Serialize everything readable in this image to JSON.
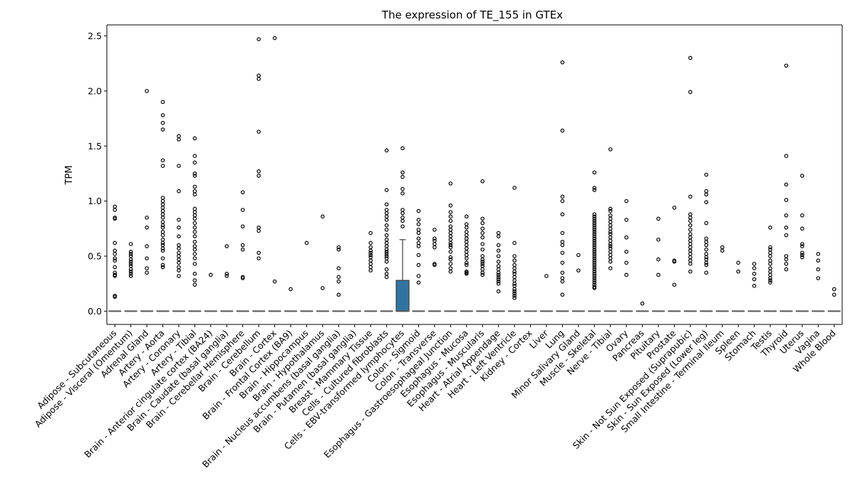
{
  "chart_data": {
    "type": "box",
    "title": "The expression of TE_155 in GTEx",
    "xlabel": "",
    "ylabel": "TPM",
    "ylim": [
      -0.12,
      2.6
    ],
    "yticks": [
      "0.0",
      "0.5",
      "1.0",
      "1.5",
      "2.0",
      "2.5"
    ],
    "box_color": "#3274a1",
    "categories": [
      "Adipose - Subcutaneous",
      "Adipose - Visceral (Omentum)",
      "Adrenal Gland",
      "Artery - Aorta",
      "Artery - Coronary",
      "Artery - Tibial",
      "Brain - Anterior cingulate cortex (BA24)",
      "Brain - Caudate (basal ganglia)",
      "Brain - Cerebellar Hemisphere",
      "Brain - Cerebellum",
      "Brain - Cortex",
      "Brain - Frontal Cortex (BA9)",
      "Brain - Hippocampus",
      "Brain - Hypothalamus",
      "Brain - Nucleus accumbens (basal ganglia)",
      "Brain - Putamen (basal ganglia)",
      "Breast - Mammary Tissue",
      "Cells - Cultured fibroblasts",
      "Cells - EBV-transformed lymphocytes",
      "Colon - Sigmoid",
      "Colon - Transverse",
      "Esophagus - Gastroesophageal Junction",
      "Esophagus - Mucosa",
      "Esophagus - Muscularis",
      "Heart - Atrial Appendage",
      "Heart - Left Ventricle",
      "Kidney - Cortex",
      "Liver",
      "Lung",
      "Minor Salivary Gland",
      "Muscle - Skeletal",
      "Nerve - Tibial",
      "Ovary",
      "Pancreas",
      "Pituitary",
      "Prostate",
      "Skin - Not Sun Exposed (Suprapubic)",
      "Skin - Sun Exposed (Lower leg)",
      "Small Intestine - Terminal Ileum",
      "Spleen",
      "Stomach",
      "Testis",
      "Thyroid",
      "Uterus",
      "Vagina",
      "Whole Blood"
    ],
    "boxes": [
      {
        "median": 0,
        "q1": 0,
        "q3": 0,
        "whislo": 0,
        "whishi": 0,
        "fliers": [
          0.95,
          0.92,
          0.85,
          0.84,
          0.62,
          0.55,
          0.52,
          0.48,
          0.46,
          0.4,
          0.35,
          0.33,
          0.32,
          0.14,
          0.13
        ]
      },
      {
        "median": 0,
        "q1": 0,
        "q3": 0,
        "whislo": 0,
        "whishi": 0,
        "fliers": [
          0.61,
          0.54,
          0.52,
          0.5,
          0.47,
          0.45,
          0.43,
          0.41,
          0.38,
          0.36,
          0.34,
          0.32
        ]
      },
      {
        "median": 0,
        "q1": 0,
        "q3": 0,
        "whislo": 0,
        "whishi": 0,
        "fliers": [
          2.0,
          0.85,
          0.76,
          0.59,
          0.48,
          0.39,
          0.35
        ]
      },
      {
        "median": 0,
        "q1": 0,
        "q3": 0,
        "whislo": 0,
        "whishi": 0,
        "fliers": [
          1.9,
          1.78,
          1.71,
          1.65,
          1.37,
          1.32,
          1.03,
          1.0,
          0.97,
          0.94,
          0.91,
          0.88,
          0.85,
          0.81,
          0.78,
          0.76,
          0.72,
          0.69,
          0.65,
          0.62,
          0.6,
          0.57,
          0.55,
          0.48,
          0.42,
          0.4
        ]
      },
      {
        "median": 0,
        "q1": 0,
        "q3": 0,
        "whislo": 0,
        "whishi": 0,
        "fliers": [
          1.59,
          1.56,
          1.32,
          1.09,
          0.83,
          0.76,
          0.68,
          0.6,
          0.57,
          0.53,
          0.5,
          0.47,
          0.44,
          0.4,
          0.37,
          0.32
        ]
      },
      {
        "median": 0,
        "q1": 0,
        "q3": 0,
        "whislo": 0,
        "whishi": 0,
        "fliers": [
          1.57,
          1.41,
          1.35,
          1.25,
          1.23,
          1.13,
          1.09,
          1.06,
          0.93,
          0.9,
          0.87,
          0.84,
          0.8,
          0.76,
          0.72,
          0.68,
          0.63,
          0.59,
          0.56,
          0.52,
          0.48,
          0.43,
          0.34,
          0.28,
          0.24
        ]
      },
      {
        "median": 0,
        "q1": 0,
        "q3": 0,
        "whislo": 0,
        "whishi": 0,
        "fliers": [
          0.33
        ]
      },
      {
        "median": 0,
        "q1": 0,
        "q3": 0,
        "whislo": 0,
        "whishi": 0,
        "fliers": [
          0.59,
          0.34,
          0.32
        ]
      },
      {
        "median": 0,
        "q1": 0,
        "q3": 0,
        "whislo": 0,
        "whishi": 0,
        "fliers": [
          1.08,
          0.92,
          0.77,
          0.6,
          0.56,
          0.31,
          0.3
        ]
      },
      {
        "median": 0,
        "q1": 0,
        "q3": 0,
        "whislo": 0,
        "whishi": 0,
        "fliers": [
          2.47,
          2.14,
          2.11,
          1.63,
          1.27,
          1.23,
          0.76,
          0.73,
          0.53,
          0.48
        ]
      },
      {
        "median": 0,
        "q1": 0,
        "q3": 0,
        "whislo": 0,
        "whishi": 0,
        "fliers": [
          2.48,
          0.27
        ]
      },
      {
        "median": 0,
        "q1": 0,
        "q3": 0,
        "whislo": 0,
        "whishi": 0,
        "fliers": [
          0.2
        ]
      },
      {
        "median": 0,
        "q1": 0,
        "q3": 0,
        "whislo": 0,
        "whishi": 0,
        "fliers": [
          0.62
        ]
      },
      {
        "median": 0,
        "q1": 0,
        "q3": 0,
        "whislo": 0,
        "whishi": 0,
        "fliers": [
          0.86,
          0.21
        ]
      },
      {
        "median": 0,
        "q1": 0,
        "q3": 0,
        "whislo": 0,
        "whishi": 0,
        "fliers": [
          0.58,
          0.56,
          0.39,
          0.31,
          0.27,
          0.15
        ]
      },
      {
        "median": 0,
        "q1": 0,
        "q3": 0,
        "whislo": 0,
        "whishi": 0,
        "fliers": []
      },
      {
        "median": 0,
        "q1": 0,
        "q3": 0,
        "whislo": 0,
        "whishi": 0,
        "fliers": [
          0.71,
          0.62,
          0.58,
          0.55,
          0.53,
          0.51,
          0.49,
          0.46,
          0.43,
          0.4,
          0.37
        ]
      },
      {
        "median": 0,
        "q1": 0,
        "q3": 0,
        "whislo": 0,
        "whishi": 0,
        "fliers": [
          1.46,
          1.1,
          0.97,
          0.92,
          0.89,
          0.86,
          0.83,
          0.78,
          0.74,
          0.69,
          0.65,
          0.62,
          0.59,
          0.56,
          0.54,
          0.52,
          0.5,
          0.48,
          0.45,
          0.38,
          0.34,
          0.31
        ]
      },
      {
        "median": 0,
        "q1": 0,
        "q3": 0.28,
        "whislo": 0,
        "whishi": 0.65,
        "fliers": [
          1.48,
          1.26,
          1.22,
          1.11,
          1.07,
          0.92,
          0.89,
          0.85,
          0.82,
          0.77
        ]
      },
      {
        "median": 0,
        "q1": 0,
        "q3": 0,
        "whislo": 0,
        "whishi": 0,
        "fliers": [
          0.91,
          0.83,
          0.79,
          0.74,
          0.71,
          0.66,
          0.62,
          0.59,
          0.51,
          0.42,
          0.32,
          0.26
        ]
      },
      {
        "median": 0,
        "q1": 0,
        "q3": 0,
        "whislo": 0,
        "whishi": 0,
        "fliers": [
          0.74,
          0.66,
          0.64,
          0.61,
          0.58,
          0.43,
          0.42
        ]
      },
      {
        "median": 0,
        "q1": 0,
        "q3": 0,
        "whislo": 0,
        "whishi": 0,
        "fliers": [
          1.16,
          0.96,
          0.9,
          0.86,
          0.82,
          0.77,
          0.74,
          0.71,
          0.68,
          0.65,
          0.62,
          0.6,
          0.58,
          0.54,
          0.49,
          0.47,
          0.43,
          0.39,
          0.36
        ]
      },
      {
        "median": 0,
        "q1": 0,
        "q3": 0,
        "whislo": 0,
        "whishi": 0,
        "fliers": [
          0.86,
          0.79,
          0.76,
          0.72,
          0.69,
          0.66,
          0.63,
          0.6,
          0.57,
          0.54,
          0.51,
          0.48,
          0.44,
          0.42,
          0.36,
          0.35,
          0.34
        ]
      },
      {
        "median": 0,
        "q1": 0,
        "q3": 0,
        "whislo": 0,
        "whishi": 0,
        "fliers": [
          1.18,
          0.84,
          0.8,
          0.75,
          0.71,
          0.67,
          0.61,
          0.56,
          0.5,
          0.47,
          0.45,
          0.43,
          0.41,
          0.38,
          0.35,
          0.33
        ]
      },
      {
        "median": 0,
        "q1": 0,
        "q3": 0,
        "whislo": 0,
        "whishi": 0,
        "fliers": [
          0.71,
          0.68,
          0.6,
          0.55,
          0.5,
          0.45,
          0.41,
          0.38,
          0.35,
          0.33,
          0.31,
          0.29,
          0.27,
          0.25,
          0.18
        ]
      },
      {
        "median": 0,
        "q1": 0,
        "q3": 0,
        "whislo": 0,
        "whishi": 0,
        "fliers": [
          1.12,
          0.62,
          0.5,
          0.46,
          0.42,
          0.39,
          0.36,
          0.34,
          0.31,
          0.28,
          0.25,
          0.23,
          0.2,
          0.18,
          0.16,
          0.14,
          0.12
        ]
      },
      {
        "median": 0,
        "q1": 0,
        "q3": 0,
        "whislo": 0,
        "whishi": 0,
        "fliers": []
      },
      {
        "median": 0,
        "q1": 0,
        "q3": 0,
        "whislo": 0,
        "whishi": 0,
        "fliers": [
          0.32
        ]
      },
      {
        "median": 0,
        "q1": 0,
        "q3": 0,
        "whislo": 0,
        "whishi": 0,
        "fliers": [
          2.26,
          1.64,
          1.04,
          1.0,
          0.88,
          0.71,
          0.63,
          0.6,
          0.53,
          0.44,
          0.35,
          0.3,
          0.27,
          0.15
        ]
      },
      {
        "median": 0,
        "q1": 0,
        "q3": 0,
        "whislo": 0,
        "whishi": 0,
        "fliers": [
          0.51,
          0.37
        ]
      },
      {
        "median": 0,
        "q1": 0,
        "q3": 0,
        "whislo": 0,
        "whishi": 0,
        "fliers": [
          1.26,
          1.12,
          1.1,
          0.88,
          0.86,
          0.84,
          0.82,
          0.8,
          0.78,
          0.76,
          0.74,
          0.72,
          0.7,
          0.68,
          0.66,
          0.64,
          0.62,
          0.6,
          0.58,
          0.56,
          0.54,
          0.52,
          0.5,
          0.48,
          0.46,
          0.44,
          0.42,
          0.4,
          0.38,
          0.36,
          0.34,
          0.32,
          0.3,
          0.28,
          0.26,
          0.24,
          0.22,
          0.21
        ]
      },
      {
        "median": 0,
        "q1": 0,
        "q3": 0,
        "whislo": 0,
        "whishi": 0,
        "fliers": [
          1.47,
          0.93,
          0.91,
          0.87,
          0.84,
          0.81,
          0.78,
          0.75,
          0.72,
          0.7,
          0.67,
          0.64,
          0.61,
          0.59,
          0.57,
          0.54,
          0.51,
          0.48,
          0.45,
          0.39
        ]
      },
      {
        "median": 0,
        "q1": 0,
        "q3": 0,
        "whislo": 0,
        "whishi": 0,
        "fliers": [
          1.0,
          0.83,
          0.67,
          0.54,
          0.44,
          0.33
        ]
      },
      {
        "median": 0,
        "q1": 0,
        "q3": 0,
        "whislo": 0,
        "whishi": 0,
        "fliers": [
          0.07
        ]
      },
      {
        "median": 0,
        "q1": 0,
        "q3": 0,
        "whislo": 0,
        "whishi": 0,
        "fliers": [
          0.84,
          0.65,
          0.47,
          0.33
        ]
      },
      {
        "median": 0,
        "q1": 0,
        "q3": 0,
        "whislo": 0,
        "whishi": 0,
        "fliers": [
          0.94,
          0.46,
          0.45,
          0.24
        ]
      },
      {
        "median": 0,
        "q1": 0,
        "q3": 0,
        "whislo": 0,
        "whishi": 0,
        "fliers": [
          2.3,
          1.99,
          1.04,
          0.88,
          0.85,
          0.82,
          0.78,
          0.74,
          0.7,
          0.67,
          0.64,
          0.61,
          0.58,
          0.55,
          0.52,
          0.49,
          0.46,
          0.43,
          0.36
        ]
      },
      {
        "median": 0,
        "q1": 0,
        "q3": 0,
        "whislo": 0,
        "whishi": 0,
        "fliers": [
          1.24,
          1.09,
          1.06,
          0.99,
          0.8,
          0.66,
          0.63,
          0.6,
          0.56,
          0.52,
          0.49,
          0.47,
          0.44,
          0.42,
          0.35
        ]
      },
      {
        "median": 0,
        "q1": 0,
        "q3": 0,
        "whislo": 0,
        "whishi": 0,
        "fliers": [
          0.58,
          0.55
        ]
      },
      {
        "median": 0,
        "q1": 0,
        "q3": 0,
        "whislo": 0,
        "whishi": 0,
        "fliers": [
          0.44,
          0.36
        ]
      },
      {
        "median": 0,
        "q1": 0,
        "q3": 0,
        "whislo": 0,
        "whishi": 0,
        "fliers": [
          0.43,
          0.39,
          0.34,
          0.29,
          0.23
        ]
      },
      {
        "median": 0,
        "q1": 0,
        "q3": 0,
        "whislo": 0,
        "whishi": 0,
        "fliers": [
          0.76,
          0.58,
          0.56,
          0.53,
          0.5,
          0.46,
          0.43,
          0.39,
          0.36,
          0.33,
          0.3,
          0.28,
          0.26
        ]
      },
      {
        "median": 0,
        "q1": 0,
        "q3": 0,
        "whislo": 0,
        "whishi": 0,
        "fliers": [
          2.23,
          1.41,
          1.15,
          1.01,
          0.87,
          0.76,
          0.69,
          0.5,
          0.47,
          0.43,
          0.38
        ]
      },
      {
        "median": 0,
        "q1": 0,
        "q3": 0,
        "whislo": 0,
        "whishi": 0,
        "fliers": [
          1.23,
          0.87,
          0.75,
          0.61,
          0.59,
          0.53,
          0.51,
          0.49
        ]
      },
      {
        "median": 0,
        "q1": 0,
        "q3": 0,
        "whislo": 0,
        "whishi": 0,
        "fliers": [
          0.52,
          0.46,
          0.38,
          0.3
        ]
      },
      {
        "median": 0,
        "q1": 0,
        "q3": 0,
        "whislo": 0,
        "whishi": 0,
        "fliers": [
          0.2,
          0.15
        ]
      }
    ]
  }
}
